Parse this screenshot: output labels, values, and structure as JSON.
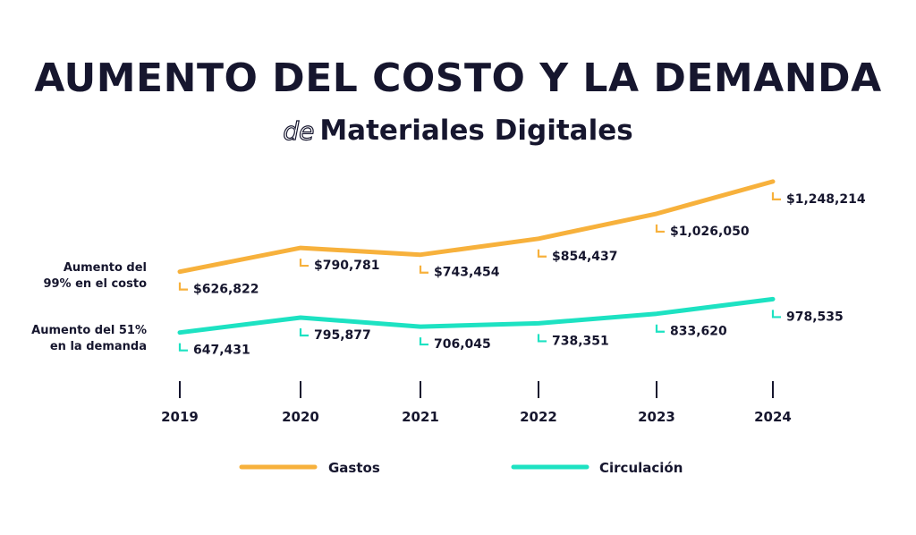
{
  "colors": {
    "gastos": "#f7b13c",
    "circulacion": "#1de2c2",
    "text": "#16162e"
  },
  "header": {
    "title": "AUMENTO DEL COSTO Y LA DEMANDA",
    "subtitle_prefix": "de",
    "subtitle": "Materiales Digitales"
  },
  "side_labels": {
    "cost": [
      "Aumento del",
      "99% en el costo"
    ],
    "demand": [
      "Aumento del 51%",
      "en la demanda"
    ]
  },
  "chart_data": {
    "type": "line",
    "title": "AUMENTO DEL COSTO Y LA DEMANDA de Materiales Digitales",
    "xlabel": "",
    "ylabel": "",
    "x": [
      "2019",
      "2020",
      "2021",
      "2022",
      "2023",
      "2024"
    ],
    "series": [
      {
        "name": "Gastos",
        "values": [
          626822,
          790781,
          743454,
          854437,
          1026050,
          1248214
        ],
        "labels": [
          "$626,822",
          "$790,781",
          "$743,454",
          "$854,437",
          "$1,026,050",
          "$1,248,214"
        ],
        "annotation": "Aumento del 99% en el costo"
      },
      {
        "name": "Circulación",
        "values": [
          647431,
          795877,
          706045,
          738351,
          833620,
          978535
        ],
        "labels": [
          "647,431",
          "795,877",
          "706,045",
          "738,351",
          "833,620",
          "978,535"
        ],
        "annotation": "Aumento del 51% en la demanda"
      }
    ],
    "legend": {
      "position": "bottom",
      "entries": [
        "Gastos",
        "Circulación"
      ]
    },
    "grid": false,
    "y_axis_visible": false
  }
}
